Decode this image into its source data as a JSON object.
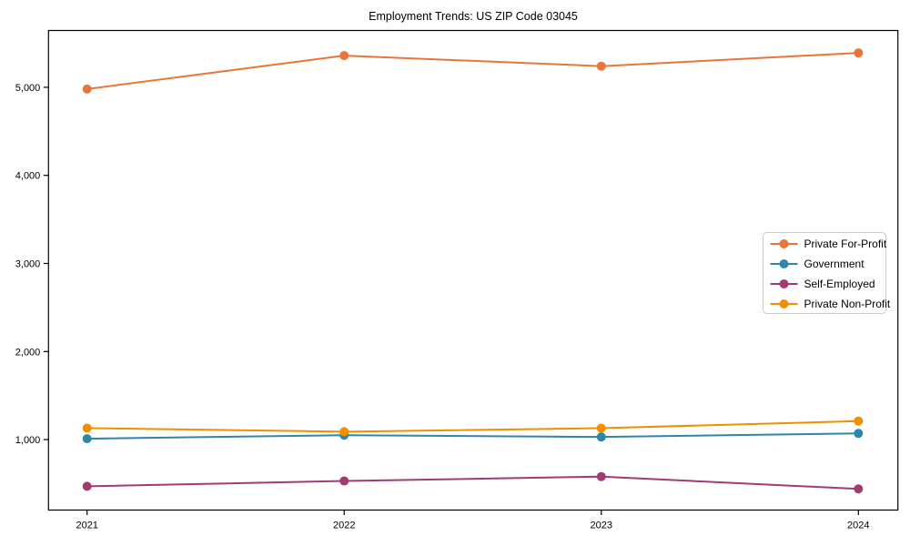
{
  "chart_data": {
    "type": "line",
    "title": "Employment Trends: US ZIP Code 03045",
    "xlabel": "",
    "ylabel": "",
    "categories": [
      "2021",
      "2022",
      "2023",
      "2024"
    ],
    "series": [
      {
        "name": "Private For-Profit",
        "color": "#E8763B",
        "values": [
          4980,
          5360,
          5240,
          5390
        ]
      },
      {
        "name": "Government",
        "color": "#2E86AB",
        "values": [
          1010,
          1050,
          1030,
          1070
        ]
      },
      {
        "name": "Self-Employed",
        "color": "#A23B72",
        "values": [
          470,
          530,
          580,
          440
        ]
      },
      {
        "name": "Private Non-Profit",
        "color": "#F18F01",
        "values": [
          1130,
          1090,
          1130,
          1210
        ]
      }
    ],
    "y_ticks": [
      {
        "value": 1000,
        "label": "1,000"
      },
      {
        "value": 2000,
        "label": "2,000"
      },
      {
        "value": 3000,
        "label": "3,000"
      },
      {
        "value": 4000,
        "label": "4,000"
      },
      {
        "value": 5000,
        "label": "5,000"
      }
    ],
    "ylim": [
      200,
      5645
    ],
    "grid": false,
    "legend_position": "center-right",
    "marker": "circle",
    "axis_color": "#000000",
    "background_color": "#ffffff",
    "legend_border_color": "#cccccc"
  }
}
